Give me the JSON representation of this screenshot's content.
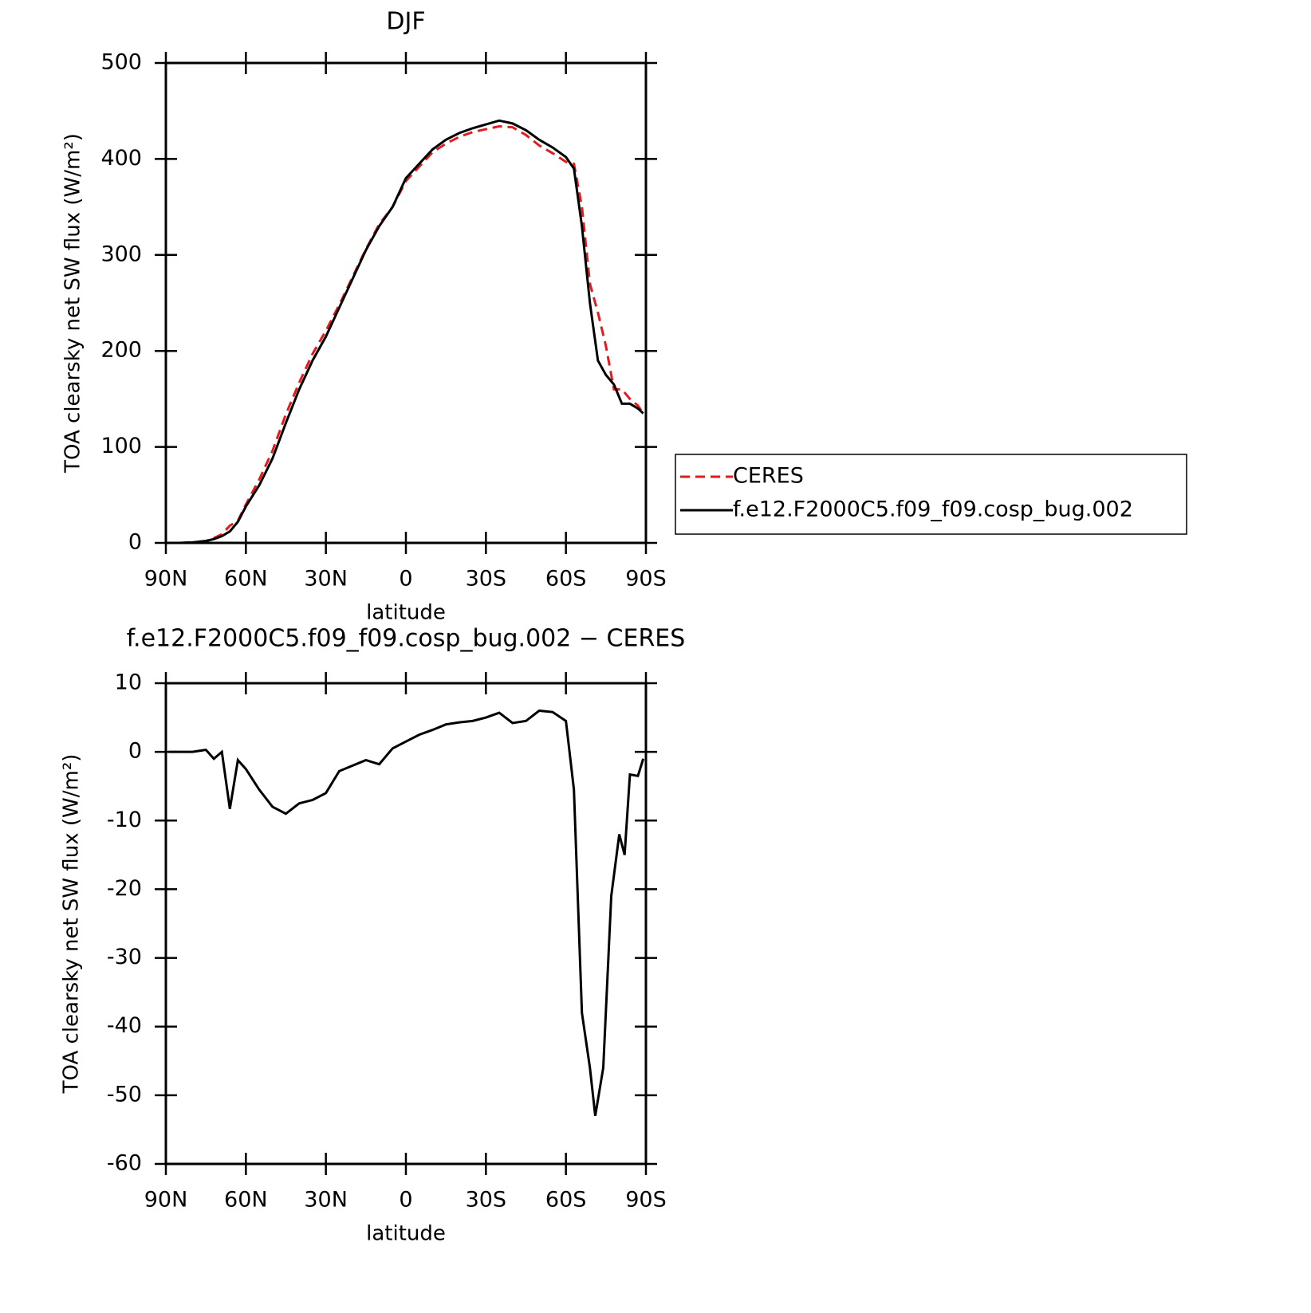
{
  "chart_data": [
    {
      "type": "line",
      "title": "DJF",
      "xlabel": "latitude",
      "ylabel": "TOA clearsky net SW flux (W/m²)",
      "x": [
        89,
        85,
        80,
        75,
        72,
        69,
        66,
        63,
        60,
        55,
        50,
        45,
        40,
        35,
        30,
        25,
        20,
        15,
        10,
        5,
        0,
        -5,
        -10,
        -15,
        -20,
        -25,
        -30,
        -35,
        -40,
        -45,
        -50,
        -55,
        -60,
        -63,
        -66,
        -69,
        -72,
        -75,
        -78,
        -81,
        -84,
        -87,
        -89
      ],
      "series": [
        {
          "name": "CERES",
          "color": "#e41a1c",
          "style": "dashed",
          "values": [
            0,
            0,
            0.5,
            2,
            5,
            9,
            18,
            23,
            40,
            66,
            96,
            134,
            167,
            197,
            221,
            248,
            277,
            306,
            332,
            350,
            377,
            392,
            407,
            416,
            423,
            428,
            431,
            434,
            433,
            425,
            414,
            406,
            397,
            395,
            350,
            270,
            240,
            205,
            160,
            160,
            150,
            143,
            135
          ]
        },
        {
          "name": "f.e12.F2000C5.f09_f09.cosp_bug.002",
          "color": "#000000",
          "style": "solid",
          "values": [
            0,
            0,
            0.5,
            2,
            4,
            7,
            12,
            22,
            38,
            60,
            88,
            125,
            160,
            190,
            215,
            245,
            275,
            305,
            330,
            350,
            380,
            395,
            410,
            420,
            427,
            432,
            436,
            440,
            437,
            430,
            420,
            412,
            402,
            390,
            330,
            250,
            190,
            175,
            165,
            145,
            145,
            140,
            135
          ]
        }
      ],
      "xlim": [
        90,
        -90
      ],
      "xticks": [
        {
          "value": 90,
          "label": "90N"
        },
        {
          "value": 60,
          "label": "60N"
        },
        {
          "value": 30,
          "label": "30N"
        },
        0,
        {
          "value": -30,
          "label": "30S"
        },
        {
          "value": -60,
          "label": "60S"
        },
        {
          "value": -90,
          "label": "90S"
        }
      ],
      "ylim": [
        0,
        500
      ],
      "yticks": [
        0,
        100,
        200,
        300,
        400,
        500
      ],
      "legend": "right"
    },
    {
      "type": "line",
      "title": "f.e12.F2000C5.f09_f09.cosp_bug.002 − CERES",
      "xlabel": "latitude",
      "ylabel": "TOA clearsky net SW flux (W/m²)",
      "x": [
        89,
        85,
        80,
        75,
        72,
        69,
        66,
        63,
        60,
        55,
        50,
        45,
        40,
        35,
        30,
        25,
        20,
        15,
        10,
        5,
        0,
        -5,
        -10,
        -15,
        -20,
        -25,
        -30,
        -35,
        -40,
        -45,
        -50,
        -55,
        -60,
        -63,
        -66,
        -69,
        -71,
        -74,
        -77,
        -80,
        -82,
        -84,
        -87,
        -89
      ],
      "series": [
        {
          "name": "f.e12.F2000C5.f09_f09.cosp_bug.002 − CERES",
          "color": "#000000",
          "style": "solid",
          "values": [
            0,
            0,
            0,
            0.3,
            -1,
            0,
            -8.3,
            -1.2,
            -2.5,
            -5.5,
            -8,
            -9,
            -7.5,
            -7,
            -6,
            -2.8,
            -2,
            -1.2,
            -1.8,
            0.5,
            1.5,
            2.5,
            3.2,
            4,
            4.3,
            4.5,
            5,
            5.7,
            4.2,
            4.5,
            6,
            5.8,
            4.5,
            -5.5,
            -38,
            -46,
            -53,
            -46,
            -21,
            -12,
            -15,
            -3.3,
            -3.5,
            -1
          ]
        }
      ],
      "xlim": [
        90,
        -90
      ],
      "xticks": [
        {
          "value": 90,
          "label": "90N"
        },
        {
          "value": 60,
          "label": "60N"
        },
        {
          "value": 30,
          "label": "30N"
        },
        0,
        {
          "value": -30,
          "label": "30S"
        },
        {
          "value": -60,
          "label": "60S"
        },
        {
          "value": -90,
          "label": "90S"
        }
      ],
      "ylim": [
        -60,
        10
      ],
      "yticks": [
        -60,
        -50,
        -40,
        -30,
        -20,
        -10,
        0,
        10
      ]
    }
  ]
}
